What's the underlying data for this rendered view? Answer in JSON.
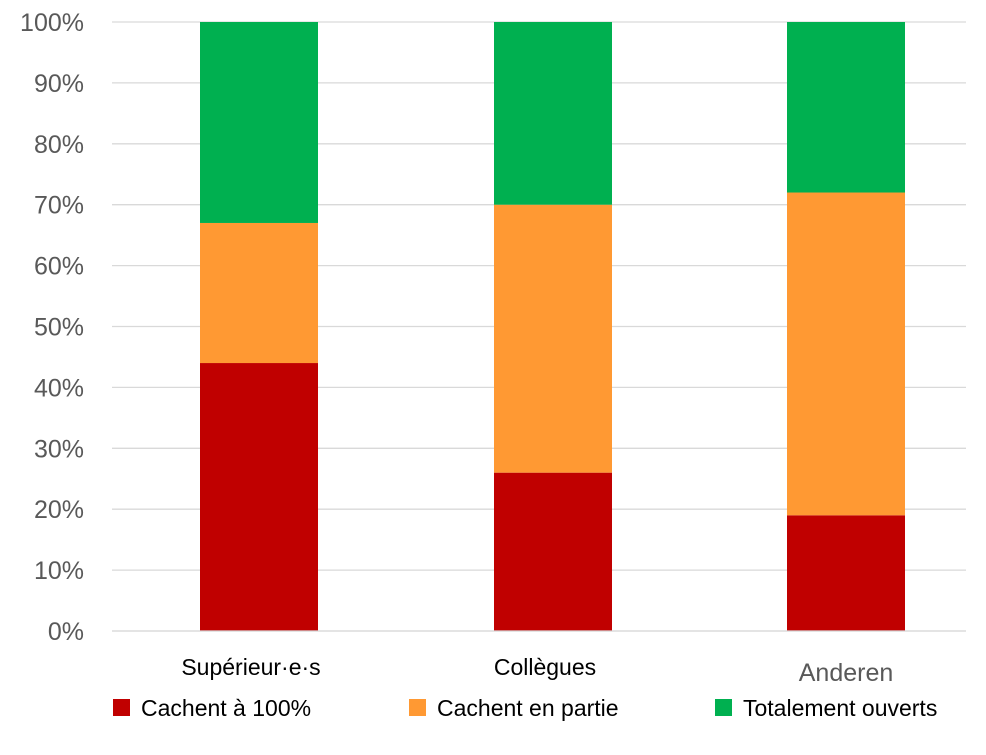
{
  "chart_data": {
    "type": "bar",
    "stacked": true,
    "percent_stacked": true,
    "categories": [
      "Supérieur·e·s",
      "Collègues",
      "Anderen"
    ],
    "series": [
      {
        "name": "Cachent à 100%",
        "values": [
          44,
          26,
          19
        ],
        "color": "#C00000"
      },
      {
        "name": "Cachent en partie",
        "values": [
          23,
          44,
          53
        ],
        "color": "#FF9933"
      },
      {
        "name": "Totalement ouverts",
        "values": [
          33,
          30,
          28
        ],
        "color": "#00B050"
      }
    ],
    "y_ticks": [
      "0%",
      "10%",
      "20%",
      "30%",
      "40%",
      "50%",
      "60%",
      "70%",
      "80%",
      "90%",
      "100%"
    ],
    "ylim": [
      0,
      100
    ],
    "grid": true,
    "legend_position": "bottom",
    "title": "",
    "xlabel": "",
    "ylabel": ""
  }
}
